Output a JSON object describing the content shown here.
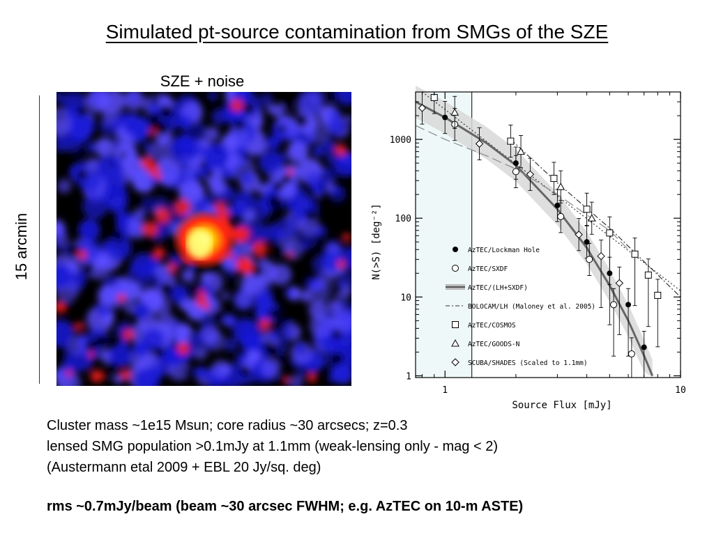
{
  "slide": {
    "title": "Simulated pt-source contamination from SMGs of the SZE",
    "map_label": "SZE + noise",
    "scale_label": "15 arcmin",
    "caption_lines": [
      "Cluster mass ~1e15 Msun; core radius ~30 arcsecs; z=0.3",
      "lensed SMG population >0.1mJy at 1.1mm  (weak-lensing only  -  mag < 2)",
      "(Austermann etal 2009 + EBL 20 Jy/sq. deg)"
    ],
    "footnote": "rms ~0.7mJy/beam (beam ~30 arcsec FWHM;  e.g. AzTEC on 10-m ASTE)"
  },
  "map": {
    "colormap": [
      "#000000",
      "#1a1ad6",
      "#5a4cff",
      "#ff1e1e",
      "#ffb000",
      "#ffff80"
    ]
  },
  "chart_data": {
    "type": "scatter",
    "xlabel": "Source Flux [mJy]",
    "ylabel": "N(>S) [deg⁻²]",
    "xscale": "log",
    "yscale": "log",
    "xlim": [
      0.75,
      10
    ],
    "ylim": [
      0.95,
      4000
    ],
    "xticks": [
      {
        "v": 1,
        "label": "1"
      },
      {
        "v": 10,
        "label": "10"
      }
    ],
    "yticks": [
      {
        "v": 1,
        "label": "1"
      },
      {
        "v": 10,
        "label": "10"
      },
      {
        "v": 100,
        "label": "100"
      },
      {
        "v": 1000,
        "label": "1000"
      }
    ],
    "shaded_band": {
      "x": [
        0.75,
        1.3
      ]
    },
    "legend_position": "bottom-left",
    "series": [
      {
        "name": "AzTEC/Lockman Hole",
        "marker": "filled-circle",
        "points": [
          [
            1.0,
            1900
          ],
          [
            2.0,
            500
          ],
          [
            3.0,
            145
          ],
          [
            4.0,
            50
          ],
          [
            5.0,
            20
          ],
          [
            6.0,
            8
          ],
          [
            7.0,
            2.3
          ]
        ]
      },
      {
        "name": "AzTEC/SXDF",
        "marker": "open-circle",
        "points": [
          [
            1.1,
            1550
          ],
          [
            2.0,
            390
          ],
          [
            3.1,
            105
          ],
          [
            4.1,
            30
          ],
          [
            5.2,
            8
          ],
          [
            6.2,
            1.9
          ]
        ]
      },
      {
        "name": "AzTEC/(LH+SXDF)",
        "marker": "band-line",
        "points": [
          [
            0.75,
            3000
          ],
          [
            1.0,
            1900
          ],
          [
            1.5,
            900
          ],
          [
            2.0,
            470
          ],
          [
            3.0,
            130
          ],
          [
            4.0,
            42
          ],
          [
            5.0,
            14
          ],
          [
            6.0,
            5
          ],
          [
            7.0,
            1.8
          ],
          [
            7.6,
            1.0
          ]
        ]
      },
      {
        "name": "BOLOCAM/LH (Maloney et al. 2005)",
        "marker": "dash-line",
        "points": [
          [
            0.75,
            1500
          ],
          [
            1.0,
            1000
          ],
          [
            1.5,
            620
          ],
          [
            2.0,
            420
          ],
          [
            3.0,
            200
          ],
          [
            4.0,
            110
          ],
          [
            5.0,
            70
          ],
          [
            6.0,
            40
          ]
        ]
      },
      {
        "name": "AzTEC/COSMOS",
        "marker": "open-square",
        "points": [
          [
            0.9,
            3400
          ],
          [
            1.9,
            950
          ],
          [
            2.9,
            320
          ],
          [
            4.0,
            130
          ],
          [
            5.0,
            65
          ],
          [
            6.4,
            35
          ],
          [
            7.3,
            19
          ],
          [
            8.0,
            10.5
          ]
        ]
      },
      {
        "name": "AzTEC/GOODS-N",
        "marker": "open-triangle",
        "points": [
          [
            1.1,
            2200
          ],
          [
            2.1,
            700
          ],
          [
            3.1,
            250
          ],
          [
            4.2,
            100
          ]
        ]
      },
      {
        "name": "SCUBA/SHADES (Scaled to 1.1mm)",
        "marker": "open-diamond",
        "points": [
          [
            0.8,
            2500
          ],
          [
            1.4,
            880
          ],
          [
            2.3,
            360
          ],
          [
            3.7,
            62
          ],
          [
            4.6,
            33
          ],
          [
            5.5,
            15
          ]
        ]
      }
    ],
    "extra_lines": [
      {
        "style": "dotted",
        "points": [
          [
            0.8,
            4000
          ],
          [
            10,
            12
          ]
        ]
      },
      {
        "style": "dash-dot",
        "points": [
          [
            1.9,
            1000
          ],
          [
            3.0,
            280
          ],
          [
            5.0,
            75
          ],
          [
            10,
            10
          ]
        ]
      }
    ]
  }
}
